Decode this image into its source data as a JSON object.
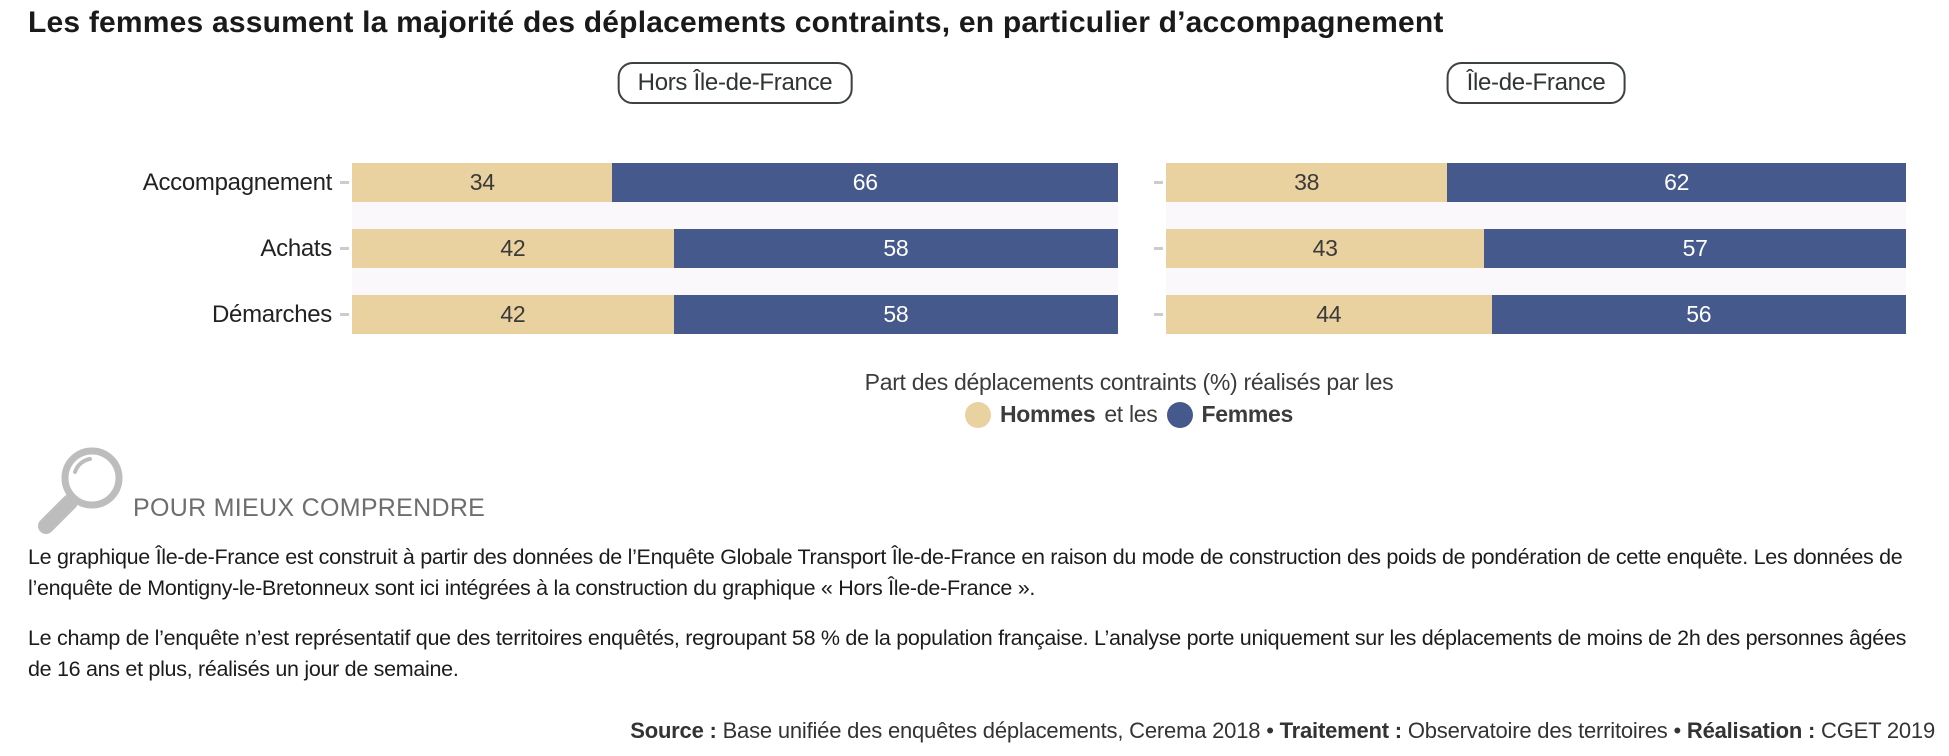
{
  "title": "Les femmes assument la majorité des déplacements contraints, en particulier d’accompagnement",
  "chart_data": {
    "type": "bar",
    "orientation": "horizontal",
    "stacked": true,
    "unit": "%",
    "x_range": [
      0,
      100
    ],
    "grid": false,
    "categories": [
      "Accompagnement",
      "Achats",
      "Démarches"
    ],
    "panels": [
      {
        "label": "Hors Île-de-France",
        "series": [
          {
            "name": "Hommes",
            "color": "#EAD1A0",
            "text_color": "#3a3a3a",
            "values": [
              34,
              42,
              42
            ]
          },
          {
            "name": "Femmes",
            "color": "#46598D",
            "text_color": "#ffffff",
            "values": [
              66,
              58,
              58
            ]
          }
        ]
      },
      {
        "label": "Île-de-France",
        "series": [
          {
            "name": "Hommes",
            "color": "#EAD1A0",
            "text_color": "#3a3a3a",
            "values": [
              38,
              43,
              44
            ]
          },
          {
            "name": "Femmes",
            "color": "#46598D",
            "text_color": "#ffffff",
            "values": [
              62,
              57,
              56
            ]
          }
        ]
      }
    ],
    "legend": {
      "position": "bottom-center",
      "prefix": "Part des déplacements contraints (%) réalisés par les",
      "items": [
        {
          "label": "Hommes",
          "color": "#EAD1A0"
        },
        {
          "text": " et les "
        },
        {
          "label": "Femmes",
          "color": "#46598D"
        }
      ]
    }
  },
  "note": {
    "icon": "magnifier",
    "heading": "POUR MIEUX COMPRENDRE",
    "paragraphs": [
      "Le graphique Île-de-France est construit à partir des données de l’Enquête Globale Transport Île-de-France en raison du mode de construction des poids de pondération de cette enquête. Les données de l’enquête de Montigny-le-Bretonneux sont ici intégrées à la construction du graphique « Hors Île-de-France ».",
      "Le champ de l’enquête n’est représentatif que des territoires enquêtés, regroupant 58 % de la population française. L’analyse porte uniquement sur les déplacements de moins de 2h des personnes âgées de 16 ans et plus, réalisés un jour de semaine."
    ]
  },
  "source": {
    "parts": [
      {
        "text": "Source :",
        "bold": true
      },
      {
        "text": " Base unifiée des enquêtes déplacements, Cerema 2018 • "
      },
      {
        "text": "Traitement :",
        "bold": true
      },
      {
        "text": " Observatoire des territoires • "
      },
      {
        "text": "Réalisation :",
        "bold": true
      },
      {
        "text": " CGET 2019"
      }
    ]
  }
}
